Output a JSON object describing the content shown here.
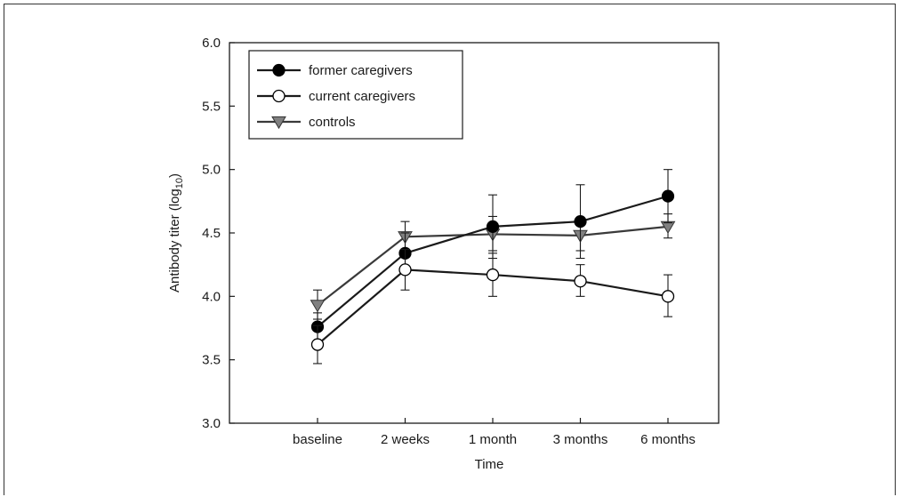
{
  "chart_data": {
    "type": "line",
    "categories": [
      "baseline",
      "2 weeks",
      "1 month",
      "3 months",
      "6 months"
    ],
    "xlabel": "Time",
    "ylabel": "Antibody titer (log",
    "ylabel_sub": "10",
    "ylabel_close": ")",
    "ylim": [
      3.0,
      6.0
    ],
    "yticks": [
      "3.0",
      "3.5",
      "4.0",
      "4.5",
      "5.0",
      "5.5",
      "6.0"
    ],
    "legend_position": "top-left",
    "series": [
      {
        "name": "former caregivers",
        "marker": "filled-circle",
        "color": "#000000",
        "values": [
          3.76,
          4.34,
          4.55,
          4.59,
          4.79
        ],
        "err_low": [
          3.65,
          4.18,
          4.3,
          4.3,
          4.58
        ],
        "err_high": [
          3.87,
          4.5,
          4.8,
          4.88,
          5.0
        ]
      },
      {
        "name": "current caregivers",
        "marker": "open-circle",
        "color": "#000000",
        "values": [
          3.62,
          4.21,
          4.17,
          4.12,
          4.0
        ],
        "err_low": [
          3.47,
          4.05,
          4.0,
          4.0,
          3.84
        ],
        "err_high": [
          3.77,
          4.37,
          4.34,
          4.25,
          4.17
        ]
      },
      {
        "name": "controls",
        "marker": "triangle-down",
        "color": "#808080",
        "values": [
          3.93,
          4.47,
          4.49,
          4.48,
          4.55
        ],
        "err_low": [
          3.82,
          4.36,
          4.36,
          4.36,
          4.46
        ],
        "err_high": [
          4.05,
          4.59,
          4.63,
          4.6,
          4.65
        ]
      }
    ]
  }
}
